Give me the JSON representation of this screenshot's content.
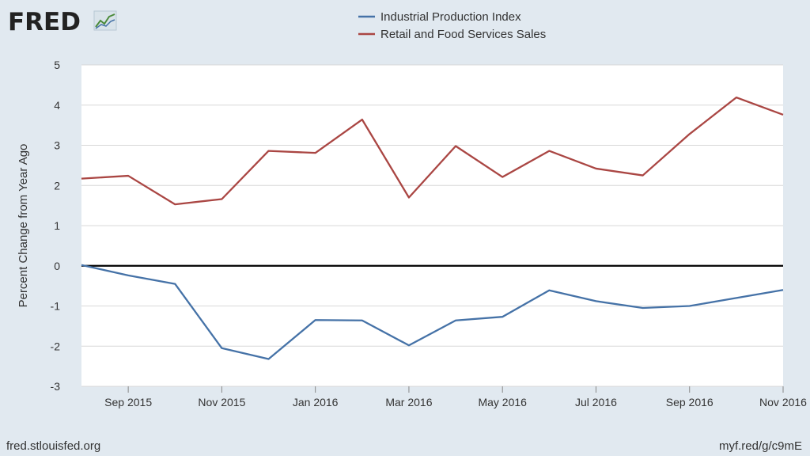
{
  "branding": {
    "logo_text": "FRED",
    "source_url": "fred.stlouisfed.org",
    "short_link": "myf.red/g/c9mE"
  },
  "chart_data": {
    "type": "line",
    "ylabel": "Percent Change from Year Ago",
    "ylim": [
      -3,
      5
    ],
    "yticks": [
      -3,
      -2,
      -1,
      0,
      1,
      2,
      3,
      4,
      5
    ],
    "x": [
      "Aug 2015",
      "Sep 2015",
      "Oct 2015",
      "Nov 2015",
      "Dec 2015",
      "Jan 2016",
      "Feb 2016",
      "Mar 2016",
      "Apr 2016",
      "May 2016",
      "Jun 2016",
      "Jul 2016",
      "Aug 2016",
      "Sep 2016",
      "Oct 2016",
      "Nov 2016"
    ],
    "xticks": [
      "Sep 2015",
      "Nov 2015",
      "Jan 2016",
      "Mar 2016",
      "May 2016",
      "Jul 2016",
      "Sep 2016",
      "Nov 2016"
    ],
    "grid": true,
    "legend_position": "top-center",
    "series": [
      {
        "name": "Industrial Production Index",
        "color": "#4572a7",
        "values": [
          0.02,
          -0.24,
          -0.45,
          -2.05,
          -2.32,
          -1.35,
          -1.36,
          -1.98,
          -1.36,
          -1.27,
          -0.61,
          -0.88,
          -1.05,
          -1.0,
          -0.8,
          -0.6
        ]
      },
      {
        "name": "Retail and Food Services Sales",
        "color": "#aa4643",
        "values": [
          2.17,
          2.24,
          1.53,
          1.66,
          2.86,
          2.81,
          3.64,
          1.7,
          2.98,
          2.21,
          2.86,
          2.42,
          2.25,
          3.28,
          4.19,
          3.76
        ]
      }
    ],
    "zero_line_color": "#000000"
  }
}
